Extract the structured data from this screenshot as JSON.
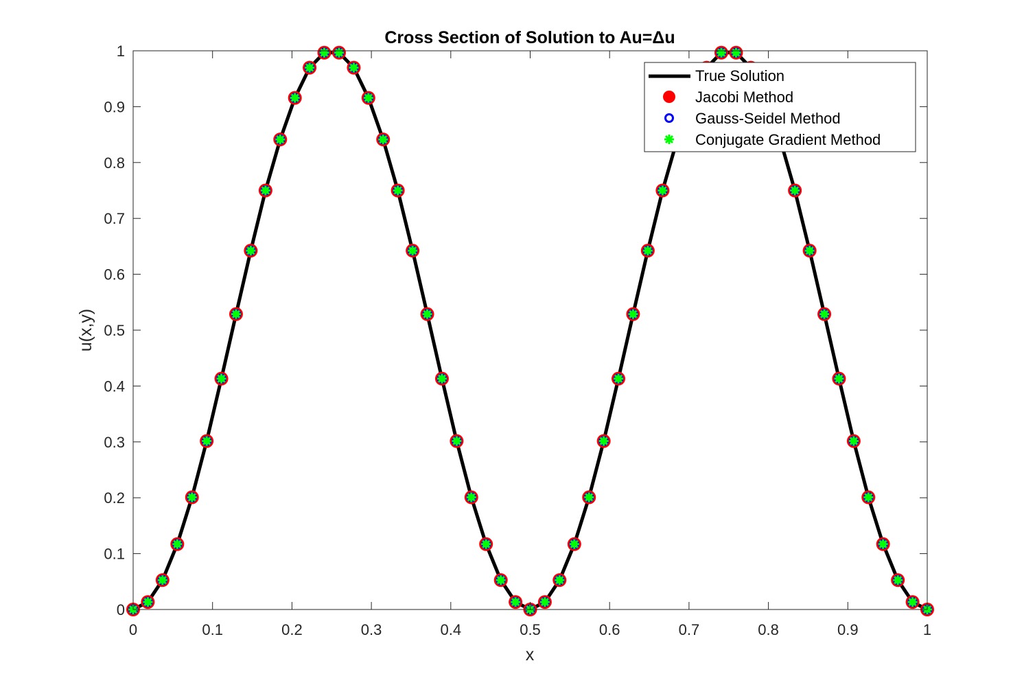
{
  "chart_data": {
    "type": "line",
    "title": "Cross Section of Solution to Au=Δu",
    "xlabel": "x",
    "ylabel": "u(x,y)",
    "xlim": [
      0,
      1
    ],
    "ylim": [
      0,
      1
    ],
    "xticks": [
      0,
      0.1,
      0.2,
      0.3,
      0.4,
      0.5,
      0.6,
      0.7,
      0.8,
      0.9,
      1
    ],
    "xtick_labels": [
      "0",
      "0.1",
      "0.2",
      "0.3",
      "0.4",
      "0.5",
      "0.6",
      "0.7",
      "0.8",
      "0.9",
      "1"
    ],
    "yticks": [
      0,
      0.1,
      0.2,
      0.3,
      0.4,
      0.5,
      0.6,
      0.7,
      0.8,
      0.9,
      1
    ],
    "ytick_labels": [
      "0",
      "0.1",
      "0.2",
      "0.3",
      "0.4",
      "0.5",
      "0.6",
      "0.7",
      "0.8",
      "0.9",
      "1"
    ],
    "grid": false,
    "legend_position": "top-right",
    "sample_x": [
      0,
      0.0185,
      0.037,
      0.0556,
      0.0741,
      0.0926,
      0.1111,
      0.1296,
      0.1481,
      0.1667,
      0.1852,
      0.2037,
      0.2222,
      0.2407,
      0.2593,
      0.2778,
      0.2963,
      0.3148,
      0.3333,
      0.3519,
      0.3704,
      0.3889,
      0.4074,
      0.4259,
      0.4444,
      0.463,
      0.4815,
      0.5,
      0.5185,
      0.537,
      0.5556,
      0.5741,
      0.5926,
      0.6111,
      0.6296,
      0.6481,
      0.6667,
      0.6852,
      0.7037,
      0.7222,
      0.7407,
      0.7593,
      0.7778,
      0.7963,
      0.8148,
      0.8333,
      0.8519,
      0.8704,
      0.8889,
      0.9074,
      0.9259,
      0.9444,
      0.963,
      0.9815,
      1
    ],
    "sample_y": [
      0,
      0.0134,
      0.0526,
      0.117,
      0.2008,
      0.3015,
      0.4132,
      0.5287,
      0.6423,
      0.75,
      0.8413,
      0.9157,
      0.9698,
      0.9966,
      0.9966,
      0.9698,
      0.9157,
      0.8413,
      0.75,
      0.6423,
      0.5287,
      0.4132,
      0.3015,
      0.2008,
      0.117,
      0.0526,
      0.0134,
      0,
      0.0134,
      0.0526,
      0.117,
      0.2008,
      0.3015,
      0.4132,
      0.5287,
      0.6423,
      0.75,
      0.8413,
      0.9157,
      0.9698,
      0.9966,
      0.9966,
      0.9698,
      0.9157,
      0.8413,
      0.75,
      0.6423,
      0.5287,
      0.4132,
      0.3015,
      0.2008,
      0.117,
      0.0526,
      0.0134,
      0
    ],
    "series": [
      {
        "name": "True Solution",
        "style": "line",
        "color": "#000000"
      },
      {
        "name": "Jacobi Method",
        "style": "marker-circle",
        "color": "#ff0000"
      },
      {
        "name": "Gauss-Seidel Method",
        "style": "marker-circle-open",
        "color": "#0000ff"
      },
      {
        "name": "Conjugate Gradient Method",
        "style": "marker-star",
        "color": "#00ff00"
      }
    ]
  }
}
